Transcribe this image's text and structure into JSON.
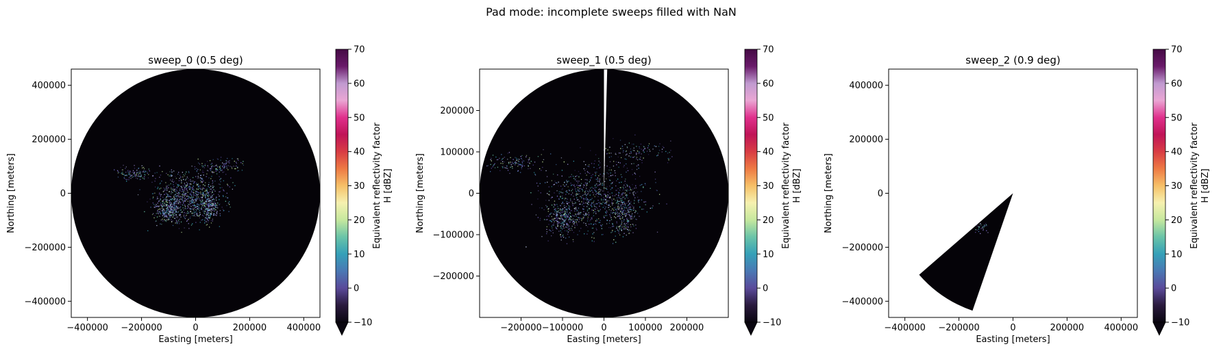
{
  "figure": {
    "suptitle": "Pad mode: incomplete sweeps filled with NaN"
  },
  "colors": {
    "background_echo": "#050308",
    "colormap": [
      "#0a0610",
      "#2a1a3e",
      "#5a4a9a",
      "#4a78b4",
      "#35a0b8",
      "#6ac4a8",
      "#c6e89e",
      "#f6f1b0",
      "#f6c068",
      "#ee7a44",
      "#d83c44",
      "#c01458",
      "#e0308c",
      "#eaa6d4",
      "#c09ad0",
      "#6a1a6a",
      "#440a44"
    ]
  },
  "chart_data": [
    {
      "type": "heatmap",
      "title": "sweep_0 (0.5 deg)",
      "xlabel": "Easting [meters]",
      "ylabel": "Northing [meters]",
      "xlim": [
        -460000,
        460000
      ],
      "ylim": [
        -460000,
        460000
      ],
      "xticks": [
        -400000,
        -200000,
        0,
        200000,
        400000
      ],
      "xtick_labels": [
        "−400000",
        "−200000",
        "0",
        "200000",
        "400000"
      ],
      "yticks": [
        400000,
        200000,
        0,
        -200000,
        -400000
      ],
      "ytick_labels": [
        "400000",
        "200000",
        "0",
        "−200000",
        "−400000"
      ],
      "coverage": {
        "shape": "full-disk",
        "range_m": 460000
      },
      "colorbar": {
        "label_line1": "Equivalent reflectivity factor",
        "label_line2": "H [dBZ]",
        "range": [
          -10,
          70
        ],
        "ticks": [
          70,
          60,
          50,
          40,
          30,
          20,
          10,
          0,
          -10
        ],
        "tick_labels": [
          "70",
          "60",
          "50",
          "40",
          "30",
          "20",
          "10",
          "0",
          "−10"
        ],
        "extend": "min"
      }
    },
    {
      "type": "heatmap",
      "title": "sweep_1 (0.5 deg)",
      "xlabel": "Easting [meters]",
      "ylabel": "Northing [meters]",
      "xlim": [
        -300000,
        300000
      ],
      "ylim": [
        -300000,
        300000
      ],
      "xticks": [
        -200000,
        -100000,
        0,
        100000,
        200000
      ],
      "xtick_labels": [
        "−200000",
        "−100000",
        "0",
        "100000",
        "200000"
      ],
      "yticks": [
        200000,
        100000,
        0,
        -100000,
        -200000
      ],
      "ytick_labels": [
        "200000",
        "100000",
        "0",
        "−100000",
        "−200000"
      ],
      "coverage": {
        "shape": "full-disk-with-gap",
        "range_m": 300000,
        "gap_azimuth_deg": [
          0,
          1.5
        ]
      },
      "colorbar": {
        "label_line1": "Equivalent reflectivity factor",
        "label_line2": "H [dBZ]",
        "range": [
          -10,
          70
        ],
        "ticks": [
          70,
          60,
          50,
          40,
          30,
          20,
          10,
          0,
          -10
        ],
        "tick_labels": [
          "70",
          "60",
          "50",
          "40",
          "30",
          "20",
          "10",
          "0",
          "−10"
        ],
        "extend": "min"
      }
    },
    {
      "type": "heatmap",
      "title": "sweep_2 (0.9 deg)",
      "xlabel": "Easting [meters]",
      "ylabel": "Northing [meters]",
      "xlim": [
        -460000,
        460000
      ],
      "ylim": [
        -460000,
        460000
      ],
      "xticks": [
        -400000,
        -200000,
        0,
        200000,
        400000
      ],
      "xtick_labels": [
        "−400000",
        "−200000",
        "0",
        "200000",
        "400000"
      ],
      "yticks": [
        400000,
        200000,
        0,
        -200000,
        -400000
      ],
      "ytick_labels": [
        "400000",
        "200000",
        "0",
        "−200000",
        "−400000"
      ],
      "coverage": {
        "shape": "sector",
        "range_m": 460000,
        "azimuth_deg": [
          199,
          229
        ]
      },
      "colorbar": {
        "label_line1": "Equivalent reflectivity factor",
        "label_line2": "H [dBZ]",
        "range": [
          -10,
          70
        ],
        "ticks": [
          70,
          60,
          50,
          40,
          30,
          20,
          10,
          0,
          -10
        ],
        "tick_labels": [
          "70",
          "60",
          "50",
          "40",
          "30",
          "20",
          "10",
          "0",
          "−10"
        ],
        "extend": "min"
      }
    }
  ]
}
